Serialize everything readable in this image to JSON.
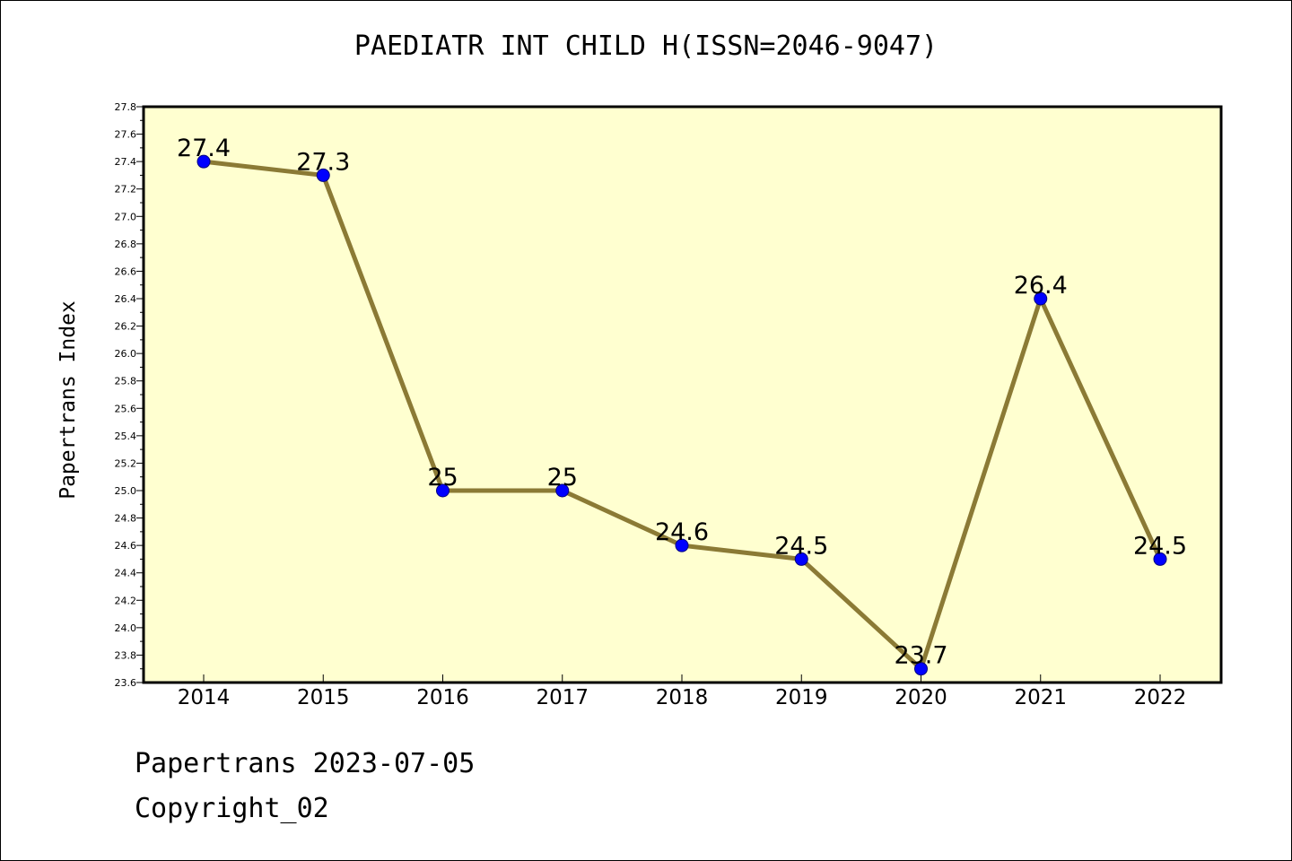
{
  "colors": {
    "plot_background": "#ffffd0",
    "line": "#8b7a35",
    "marker": "#0000ff",
    "marker_edge": "#000080",
    "axis": "#000000"
  },
  "chart_data": {
    "type": "line",
    "title": "PAEDIATR INT CHILD H(ISSN=2046-9047)",
    "xlabel": "",
    "ylabel": "Papertrans Index",
    "categories": [
      "2014",
      "2015",
      "2016",
      "2017",
      "2018",
      "2019",
      "2020",
      "2021",
      "2022"
    ],
    "series": [
      {
        "values": [
          27.4,
          27.3,
          25.0,
          25.0,
          24.6,
          24.5,
          23.7,
          26.4,
          24.5
        ],
        "labels": [
          "27.4",
          "27.3",
          "25",
          "25",
          "24.6",
          "24.5",
          "23.7",
          "26.4",
          "24.5"
        ]
      }
    ],
    "ylim": [
      23.6,
      27.8
    ],
    "y_major_step": 0.2,
    "y_minor_step": 0.1,
    "grid": false,
    "legend": "none"
  },
  "footer": {
    "date_line": "Papertrans 2023-07-05",
    "copyright_line": "Copyright_02"
  }
}
